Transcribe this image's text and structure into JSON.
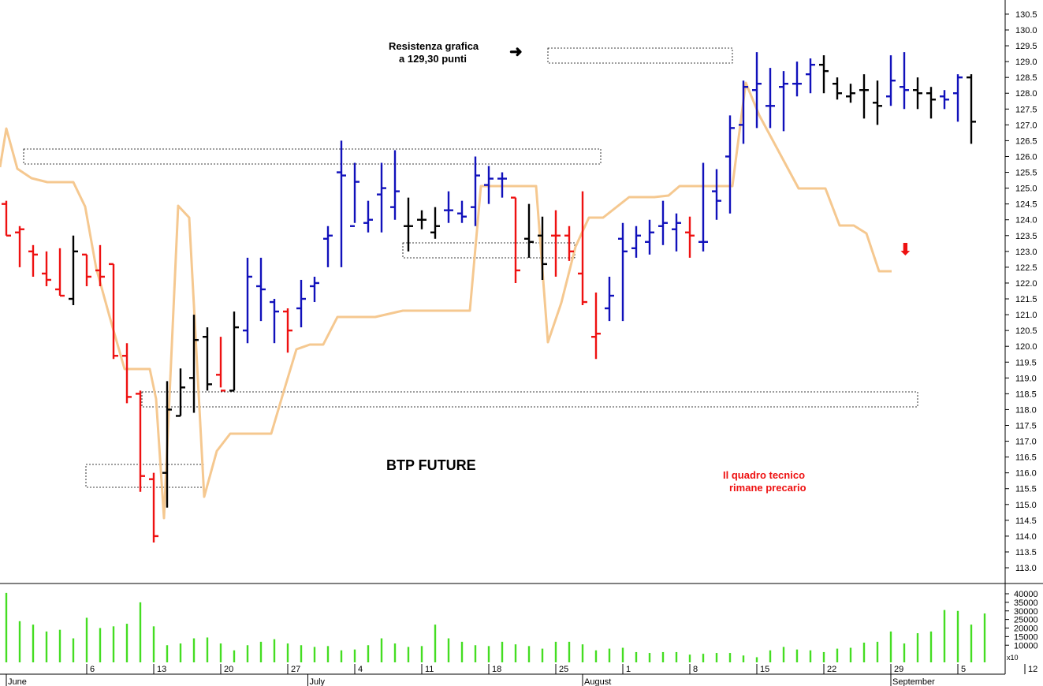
{
  "chart_data": {
    "type": "ohlc",
    "title": "BTP FUTURE",
    "annotations": {
      "resistance_line1": "Resistenza grafica",
      "resistance_line2": "a 129,30 punti",
      "note_line1": "Il quadro tecnico",
      "note_line2": "rimane precario"
    },
    "price_axis": {
      "min": 112.7,
      "max": 130.8,
      "ticks": [
        "130.5",
        "130.0",
        "129.5",
        "129.0",
        "128.5",
        "128.0",
        "127.5",
        "127.0",
        "126.5",
        "126.0",
        "125.5",
        "125.0",
        "124.5",
        "124.0",
        "123.5",
        "123.0",
        "122.5",
        "122.0",
        "121.5",
        "121.0",
        "120.5",
        "120.0",
        "119.5",
        "119.0",
        "118.5",
        "118.0",
        "117.5",
        "117.0",
        "116.5",
        "116.0",
        "115.5",
        "115.0",
        "114.5",
        "114.0",
        "113.5",
        "113.0"
      ]
    },
    "volume_axis": {
      "min": 0,
      "max": 42000,
      "ticks": [
        40000,
        35000,
        30000,
        25000,
        20000,
        15000,
        10000
      ],
      "tick_labels": [
        "40000",
        "35000",
        "30000",
        "25000",
        "20000",
        "15000",
        "10000"
      ],
      "multiplier_label": "x10"
    },
    "x_axis": {
      "first_index": 0,
      "last_index": 74,
      "day_labels": [
        {
          "label": "6",
          "index": 3
        },
        {
          "label": "13",
          "index": 8
        },
        {
          "label": "20",
          "index": 13
        },
        {
          "label": "27",
          "index": 18
        },
        {
          "label": "4",
          "index": 23
        },
        {
          "label": "11",
          "index": 28
        },
        {
          "label": "18",
          "index": 33
        },
        {
          "label": "25",
          "index": 38
        },
        {
          "label": "1",
          "index": 43
        },
        {
          "label": "8",
          "index": 48
        },
        {
          "label": "15",
          "index": 53
        },
        {
          "label": "22",
          "index": 58
        },
        {
          "label": "29",
          "index": 63
        },
        {
          "label": "5",
          "index": 68
        },
        {
          "label": "12",
          "index": 73
        }
      ],
      "month_labels": [
        {
          "label": "June",
          "index": 0
        },
        {
          "label": "July",
          "index": 22.5
        },
        {
          "label": "August",
          "index": 43
        },
        {
          "label": "September",
          "index": 66
        }
      ]
    },
    "series": [
      {
        "name": "",
        "type": "ohlc",
        "color": "mixed",
        "bars": [
          {
            "i": 0,
            "o": 124.5,
            "h": 124.6,
            "l": 123.5,
            "c": 123.5,
            "col": "#ee1111"
          },
          {
            "i": 1,
            "o": 123.6,
            "h": 123.8,
            "l": 122.5,
            "c": 123.7,
            "col": "#ee1111"
          },
          {
            "i": 2,
            "o": 123.0,
            "h": 123.2,
            "l": 122.2,
            "c": 122.9,
            "col": "#ee1111"
          },
          {
            "i": 3,
            "o": 122.3,
            "h": 123.0,
            "l": 121.9,
            "c": 122.1,
            "col": "#ee1111"
          },
          {
            "i": 4,
            "o": 121.8,
            "h": 123.1,
            "l": 121.6,
            "c": 121.6,
            "col": "#ee1111"
          },
          {
            "i": 5,
            "o": 121.5,
            "h": 123.5,
            "l": 121.3,
            "c": 123.0,
            "col": "#000000"
          },
          {
            "i": 6,
            "o": 122.9,
            "h": 122.9,
            "l": 121.9,
            "c": 122.2,
            "col": "#ee1111"
          },
          {
            "i": 7,
            "o": 122.4,
            "h": 123.2,
            "l": 121.9,
            "c": 122.2,
            "col": "#ee1111"
          },
          {
            "i": 8,
            "o": 122.6,
            "h": 122.6,
            "l": 119.6,
            "c": 119.7,
            "col": "#ee1111"
          },
          {
            "i": 9,
            "o": 119.7,
            "h": 120.1,
            "l": 118.2,
            "c": 118.4,
            "col": "#ee1111"
          },
          {
            "i": 10,
            "o": 118.5,
            "h": 118.6,
            "l": 115.4,
            "c": 115.9,
            "col": "#ee1111"
          },
          {
            "i": 11,
            "o": 115.8,
            "h": 116.0,
            "l": 113.8,
            "c": 114.0,
            "col": "#ee1111"
          },
          {
            "i": 12,
            "o": 116.0,
            "h": 118.9,
            "l": 114.9,
            "c": 118.0,
            "col": "#000000"
          },
          {
            "i": 13,
            "o": 117.8,
            "h": 119.3,
            "l": 117.8,
            "c": 118.7,
            "col": "#000000"
          },
          {
            "i": 14,
            "o": 119.0,
            "h": 121.0,
            "l": 117.9,
            "c": 120.2,
            "col": "#000000"
          },
          {
            "i": 15,
            "o": 120.3,
            "h": 120.6,
            "l": 118.6,
            "c": 118.8,
            "col": "#000000"
          },
          {
            "i": 16,
            "o": 119.1,
            "h": 120.3,
            "l": 118.7,
            "c": 118.6,
            "col": "#ee1111"
          },
          {
            "i": 17,
            "o": 118.6,
            "h": 121.1,
            "l": 118.6,
            "c": 120.6,
            "col": "#000000"
          },
          {
            "i": 18,
            "o": 120.5,
            "h": 122.8,
            "l": 120.1,
            "c": 122.2,
            "col": "#1111bb"
          },
          {
            "i": 19,
            "o": 121.9,
            "h": 122.8,
            "l": 120.8,
            "c": 121.8,
            "col": "#1111bb"
          },
          {
            "i": 20,
            "o": 121.4,
            "h": 121.5,
            "l": 120.1,
            "c": 121.1,
            "col": "#1111bb"
          },
          {
            "i": 21,
            "o": 121.1,
            "h": 121.2,
            "l": 119.8,
            "c": 120.5,
            "col": "#ee1111"
          },
          {
            "i": 22,
            "o": 121.2,
            "h": 122.1,
            "l": 120.6,
            "c": 121.5,
            "col": "#1111bb"
          },
          {
            "i": 23,
            "o": 121.9,
            "h": 122.2,
            "l": 121.4,
            "c": 122.0,
            "col": "#1111bb"
          },
          {
            "i": 24,
            "o": 123.4,
            "h": 123.8,
            "l": 122.5,
            "c": 123.5,
            "col": "#1111bb"
          },
          {
            "i": 25,
            "o": 125.5,
            "h": 126.5,
            "l": 122.5,
            "c": 125.4,
            "col": "#1111bb"
          },
          {
            "i": 26,
            "o": 123.8,
            "h": 125.8,
            "l": 123.9,
            "c": 125.2,
            "col": "#1111bb"
          },
          {
            "i": 27,
            "o": 123.9,
            "h": 124.6,
            "l": 123.6,
            "c": 124.0,
            "col": "#1111bb"
          },
          {
            "i": 28,
            "o": 124.8,
            "h": 125.8,
            "l": 123.6,
            "c": 125.0,
            "col": "#1111bb"
          },
          {
            "i": 29,
            "o": 124.4,
            "h": 126.2,
            "l": 124.0,
            "c": 124.9,
            "col": "#1111bb"
          },
          {
            "i": 30,
            "o": 123.8,
            "h": 124.7,
            "l": 123.0,
            "c": 123.8,
            "col": "#000000"
          },
          {
            "i": 31,
            "o": 124.0,
            "h": 124.3,
            "l": 123.7,
            "c": 124.0,
            "col": "#000000"
          },
          {
            "i": 32,
            "o": 123.6,
            "h": 124.4,
            "l": 123.4,
            "c": 123.8,
            "col": "#000000"
          },
          {
            "i": 33,
            "o": 124.3,
            "h": 124.9,
            "l": 123.9,
            "c": 124.3,
            "col": "#1111bb"
          },
          {
            "i": 34,
            "o": 124.2,
            "h": 124.6,
            "l": 123.9,
            "c": 124.1,
            "col": "#1111bb"
          },
          {
            "i": 35,
            "o": 124.4,
            "h": 126.0,
            "l": 123.8,
            "c": 125.4,
            "col": "#1111bb"
          },
          {
            "i": 36,
            "o": 125.1,
            "h": 125.7,
            "l": 124.5,
            "c": 125.3,
            "col": "#1111bb"
          },
          {
            "i": 37,
            "o": 125.3,
            "h": 125.5,
            "l": 124.7,
            "c": 125.3,
            "col": "#1111bb"
          },
          {
            "i": 38,
            "o": 124.7,
            "h": 124.7,
            "l": 122.0,
            "c": 122.4,
            "col": "#ee1111"
          },
          {
            "i": 39,
            "o": 123.4,
            "h": 124.5,
            "l": 122.8,
            "c": 123.3,
            "col": "#000000"
          },
          {
            "i": 40,
            "o": 123.5,
            "h": 124.1,
            "l": 122.1,
            "c": 122.6,
            "col": "#000000"
          },
          {
            "i": 41,
            "o": 123.5,
            "h": 124.3,
            "l": 122.2,
            "c": 123.5,
            "col": "#ee1111"
          },
          {
            "i": 42,
            "o": 123.5,
            "h": 123.8,
            "l": 122.7,
            "c": 123.0,
            "col": "#ee1111"
          },
          {
            "i": 43,
            "o": 122.3,
            "h": 124.9,
            "l": 121.3,
            "c": 121.4,
            "col": "#ee1111"
          },
          {
            "i": 44,
            "o": 120.3,
            "h": 121.7,
            "l": 119.6,
            "c": 120.4,
            "col": "#ee1111"
          },
          {
            "i": 45,
            "o": 121.2,
            "h": 122.2,
            "l": 120.8,
            "c": 121.6,
            "col": "#1111bb"
          },
          {
            "i": 46,
            "o": 123.4,
            "h": 123.9,
            "l": 120.8,
            "c": 123.0,
            "col": "#1111bb"
          },
          {
            "i": 47,
            "o": 123.1,
            "h": 123.8,
            "l": 122.8,
            "c": 123.5,
            "col": "#1111bb"
          },
          {
            "i": 48,
            "o": 123.3,
            "h": 124.0,
            "l": 122.9,
            "c": 123.6,
            "col": "#1111bb"
          },
          {
            "i": 49,
            "o": 123.8,
            "h": 124.6,
            "l": 123.2,
            "c": 123.9,
            "col": "#1111bb"
          },
          {
            "i": 50,
            "o": 123.7,
            "h": 124.2,
            "l": 123.0,
            "c": 123.9,
            "col": "#1111bb"
          },
          {
            "i": 51,
            "o": 123.6,
            "h": 124.1,
            "l": 122.8,
            "c": 123.5,
            "col": "#ee1111"
          },
          {
            "i": 52,
            "o": 123.3,
            "h": 125.8,
            "l": 123.0,
            "c": 123.3,
            "col": "#1111bb"
          },
          {
            "i": 53,
            "o": 124.9,
            "h": 125.6,
            "l": 124.0,
            "c": 124.6,
            "col": "#1111bb"
          },
          {
            "i": 54,
            "o": 126.0,
            "h": 127.3,
            "l": 124.2,
            "c": 126.9,
            "col": "#1111bb"
          },
          {
            "i": 55,
            "o": 127.0,
            "h": 128.4,
            "l": 126.4,
            "c": 128.2,
            "col": "#1111bb"
          },
          {
            "i": 56,
            "o": 128.1,
            "h": 129.3,
            "l": 126.9,
            "c": 128.3,
            "col": "#1111bb"
          },
          {
            "i": 57,
            "o": 127.6,
            "h": 128.8,
            "l": 126.9,
            "c": 127.6,
            "col": "#1111bb"
          },
          {
            "i": 58,
            "o": 128.2,
            "h": 128.7,
            "l": 126.8,
            "c": 128.3,
            "col": "#1111bb"
          },
          {
            "i": 59,
            "o": 128.3,
            "h": 129.0,
            "l": 127.9,
            "c": 128.3,
            "col": "#1111bb"
          },
          {
            "i": 60,
            "o": 128.6,
            "h": 129.1,
            "l": 128.0,
            "c": 128.9,
            "col": "#1111bb"
          },
          {
            "i": 61,
            "o": 128.9,
            "h": 129.2,
            "l": 128.0,
            "c": 128.7,
            "col": "#000000"
          },
          {
            "i": 62,
            "o": 128.3,
            "h": 128.5,
            "l": 127.8,
            "c": 128.0,
            "col": "#000000"
          },
          {
            "i": 63,
            "o": 127.9,
            "h": 128.3,
            "l": 127.7,
            "c": 128.0,
            "col": "#000000"
          },
          {
            "i": 64,
            "o": 128.1,
            "h": 128.6,
            "l": 127.2,
            "c": 128.1,
            "col": "#000000"
          },
          {
            "i": 65,
            "o": 127.7,
            "h": 128.4,
            "l": 127.0,
            "c": 127.6,
            "col": "#000000"
          },
          {
            "i": 66,
            "o": 127.9,
            "h": 129.2,
            "l": 127.6,
            "c": 128.4,
            "col": "#1111bb"
          },
          {
            "i": 67,
            "o": 128.2,
            "h": 129.3,
            "l": 127.5,
            "c": 128.1,
            "col": "#1111bb"
          },
          {
            "i": 68,
            "o": 128.1,
            "h": 128.5,
            "l": 127.5,
            "c": 128.0,
            "col": "#000000"
          },
          {
            "i": 69,
            "o": 128.0,
            "h": 128.2,
            "l": 127.2,
            "c": 127.8,
            "col": "#000000"
          },
          {
            "i": 70,
            "o": 127.9,
            "h": 128.1,
            "l": 127.5,
            "c": 127.8,
            "col": "#1111bb"
          },
          {
            "i": 71,
            "o": 128.0,
            "h": 128.6,
            "l": 127.1,
            "c": 128.5,
            "col": "#1111bb"
          },
          {
            "i": 72,
            "o": 128.5,
            "h": 128.6,
            "l": 126.4,
            "c": 127.1,
            "col": "#000000"
          }
        ]
      },
      {
        "name": "",
        "type": "line",
        "color": "#f5c890"
      },
      {
        "name": "",
        "type": "volume_bars",
        "color": "#44dd22"
      }
    ],
    "grid": false,
    "legend": "none"
  }
}
